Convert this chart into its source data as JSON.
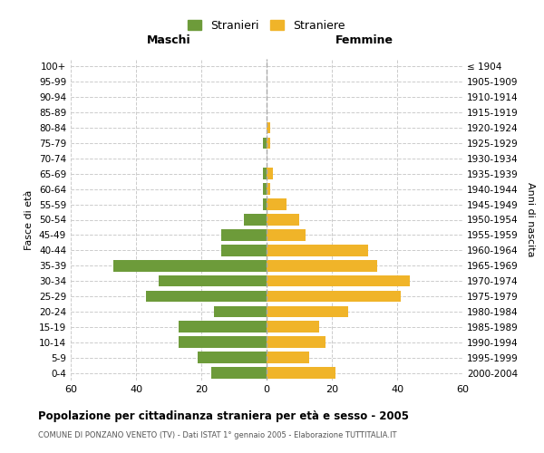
{
  "age_groups": [
    "0-4",
    "5-9",
    "10-14",
    "15-19",
    "20-24",
    "25-29",
    "30-34",
    "35-39",
    "40-44",
    "45-49",
    "50-54",
    "55-59",
    "60-64",
    "65-69",
    "70-74",
    "75-79",
    "80-84",
    "85-89",
    "90-94",
    "95-99",
    "100+"
  ],
  "birth_years": [
    "2000-2004",
    "1995-1999",
    "1990-1994",
    "1985-1989",
    "1980-1984",
    "1975-1979",
    "1970-1974",
    "1965-1969",
    "1960-1964",
    "1955-1959",
    "1950-1954",
    "1945-1949",
    "1940-1944",
    "1935-1939",
    "1930-1934",
    "1925-1929",
    "1920-1924",
    "1915-1919",
    "1910-1914",
    "1905-1909",
    "≤ 1904"
  ],
  "maschi": [
    17,
    21,
    27,
    27,
    16,
    37,
    33,
    47,
    14,
    14,
    7,
    1,
    1,
    1,
    0,
    1,
    0,
    0,
    0,
    0,
    0
  ],
  "femmine": [
    21,
    13,
    18,
    16,
    25,
    41,
    44,
    34,
    31,
    12,
    10,
    6,
    1,
    2,
    0,
    1,
    1,
    0,
    0,
    0,
    0
  ],
  "maschi_color": "#6d9b3a",
  "femmine_color": "#f0b429",
  "background_color": "#ffffff",
  "grid_color": "#cccccc",
  "title": "Popolazione per cittadinanza straniera per età e sesso - 2005",
  "subtitle": "COMUNE DI PONZANO VENETO (TV) - Dati ISTAT 1° gennaio 2005 - Elaborazione TUTTITALIA.IT",
  "xlabel_left": "Maschi",
  "xlabel_right": "Femmine",
  "ylabel_left": "Fasce di età",
  "ylabel_right": "Anni di nascita",
  "legend_maschi": "Stranieri",
  "legend_femmine": "Straniere",
  "xlim": 60,
  "bar_height": 0.75
}
